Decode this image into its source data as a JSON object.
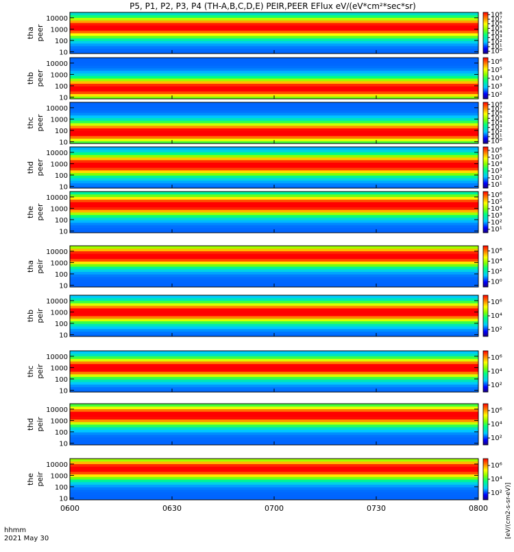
{
  "figure": {
    "title": "P5, P1, P2, P3, P4 (TH-A,B,C,D,E) PEIR,PEER EFlux eV/(eV*cm²*sec*sr)",
    "x_axis_caption": "hhmm",
    "date_label": "2021 May 30",
    "colorbar_unit": "[eV/(cm2-s-sr-eV)]",
    "colors": {
      "background": "#ffffff",
      "fill_band": "#ff0000",
      "spectrum_low": "#00008b",
      "spectrum_mid": "#00ff00",
      "spectrum_high": "#ff0000"
    }
  },
  "chart_data": {
    "type": "heatmap",
    "x_ticks": [
      "0600",
      "0630",
      "0700",
      "0730",
      "0800"
    ],
    "x_range": [
      "0600",
      "0800"
    ],
    "y_scale": "log",
    "y_range": [
      7,
      30000
    ],
    "y_unit": "eV",
    "colorbar_scale": "log",
    "panels": [
      {
        "label": [
          "tha",
          "peer"
        ],
        "y_ticks": [
          "10000",
          "1000",
          "100",
          "10"
        ],
        "cb_ticks": [
          "10⁸",
          "10⁷",
          "10⁶",
          "10⁵",
          "10⁴",
          "10³",
          "10²",
          "10¹",
          "10⁰"
        ],
        "peak_energy_ev": 1500,
        "peak_log_flux": 8
      },
      {
        "label": [
          "thb",
          "peer"
        ],
        "y_ticks": [
          "10000",
          "1000",
          "100",
          "10"
        ],
        "cb_ticks": [
          "10⁶",
          "10⁵",
          "10⁴",
          "10³",
          "10²"
        ],
        "peak_energy_ev": 60,
        "peak_log_flux": 6
      },
      {
        "label": [
          "thc",
          "peer"
        ],
        "y_ticks": [
          "10000",
          "1000",
          "100",
          "10"
        ],
        "cb_ticks": [
          "10⁸",
          "10⁷",
          "10⁶",
          "10⁵",
          "10⁴",
          "10³",
          "10²",
          "10¹",
          "10⁰"
        ],
        "peak_energy_ev": 70,
        "peak_log_flux": 8
      },
      {
        "label": [
          "thd",
          "peer"
        ],
        "y_ticks": [
          "10000",
          "1000",
          "100",
          "10"
        ],
        "cb_ticks": [
          "10⁶",
          "10⁵",
          "10⁴",
          "10³",
          "10²",
          "10¹"
        ],
        "peak_energy_ev": 800,
        "peak_log_flux": 6
      },
      {
        "label": [
          "the",
          "peer"
        ],
        "y_ticks": [
          "10000",
          "1000",
          "100",
          "10"
        ],
        "cb_ticks": [
          "10⁶",
          "10⁵",
          "10⁴",
          "10³",
          "10²",
          "10¹"
        ],
        "peak_energy_ev": 2000,
        "peak_log_flux": 6
      },
      {
        "label": [
          "tha",
          "peir"
        ],
        "y_ticks": [
          "10000",
          "1000",
          "100",
          "10"
        ],
        "cb_ticks": [
          "10⁶",
          "10⁴",
          "10²",
          "10⁰"
        ],
        "peak_energy_ev": 4000,
        "peak_log_flux": 6
      },
      {
        "label": [
          "thb",
          "peir"
        ],
        "y_ticks": [
          "10000",
          "1000",
          "100",
          "10"
        ],
        "cb_ticks": [
          "10⁶",
          "10⁴",
          "10²"
        ],
        "peak_energy_ev": 1000,
        "peak_log_flux": 6
      },
      {
        "label": [
          "thc",
          "peir"
        ],
        "y_ticks": [
          "10000",
          "1000",
          "100",
          "10"
        ],
        "cb_ticks": [
          "10⁶",
          "10⁴",
          "10²"
        ],
        "peak_energy_ev": 1000,
        "peak_log_flux": 6
      },
      {
        "label": [
          "thd",
          "peir"
        ],
        "y_ticks": [
          "10000",
          "1000",
          "100",
          "10"
        ],
        "cb_ticks": [
          "10⁶",
          "10⁴",
          "10²"
        ],
        "peak_energy_ev": 3000,
        "peak_log_flux": 6
      },
      {
        "label": [
          "the",
          "peir"
        ],
        "y_ticks": [
          "10000",
          "1000",
          "100",
          "10"
        ],
        "cb_ticks": [
          "10⁶",
          "10⁴",
          "10²"
        ],
        "peak_energy_ev": 4000,
        "peak_log_flux": 6
      }
    ]
  }
}
